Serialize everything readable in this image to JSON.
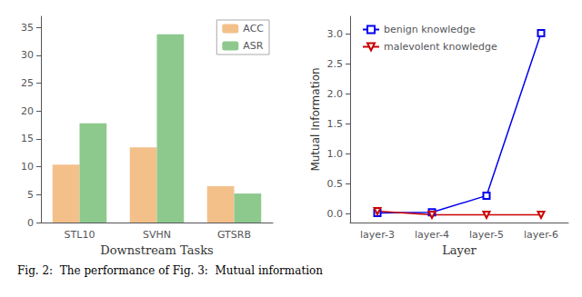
{
  "chart_data": [
    {
      "type": "bar",
      "categories": [
        "STL10",
        "SVHN",
        "GTSRB"
      ],
      "series": [
        {
          "name": "ACC",
          "color": "#F4C08A",
          "values": [
            10.4,
            13.5,
            6.5
          ]
        },
        {
          "name": "ASR",
          "color": "#8DC98D",
          "values": [
            17.8,
            33.8,
            5.2
          ]
        }
      ],
      "xlabel": "Downstream Tasks",
      "ylim": [
        0,
        37
      ],
      "yticks": [
        0,
        5,
        10,
        15,
        20,
        25,
        30,
        35
      ],
      "legend": "upper right",
      "grid": false,
      "annotations": [
        "Fig. 2:  The performance of Fig. 3:  Mutual information"
      ]
    },
    {
      "type": "line",
      "categories": [
        "layer-3",
        "layer-4",
        "layer-5",
        "layer-6"
      ],
      "series": [
        {
          "name": "benign knowledge",
          "color": "#0000EE",
          "marker": "square",
          "values": [
            0.01,
            0.02,
            0.3,
            3.02
          ]
        },
        {
          "name": "malevolent knowledge",
          "color": "#CC0000",
          "marker": "triangle_down",
          "values": [
            0.04,
            -0.02,
            -0.02,
            -0.02
          ]
        }
      ],
      "xlabel": "Layer",
      "ylabel": "Mutual Information",
      "ylim": [
        -0.15,
        3.3
      ],
      "yticks": [
        {
          "value": 0.0,
          "label": "0.0"
        },
        {
          "value": 0.5,
          "label": "0.5"
        },
        {
          "value": 1.0,
          "label": "1.0"
        },
        {
          "value": 1.5,
          "label": "1.5"
        },
        {
          "value": 2.0,
          "label": "2.0"
        },
        {
          "value": 2.5,
          "label": "2.5"
        },
        {
          "value": 3.0,
          "label": "3.0"
        }
      ],
      "legend": "upper left",
      "grid": false
    }
  ]
}
